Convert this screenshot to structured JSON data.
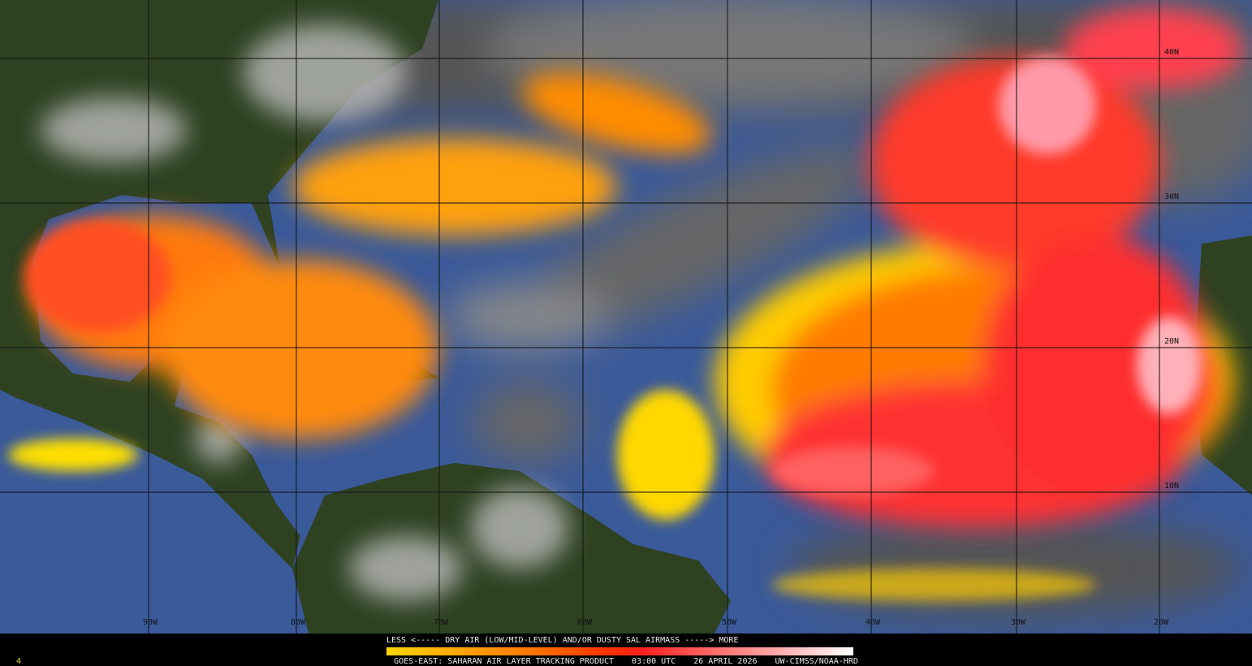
{
  "product": {
    "legend_title": "LESS <----- DRY AIR (LOW/MID-LEVEL) AND/OR DUSTY SAL AIRMASS -----> MORE",
    "footer_product": "GOES-EAST: SAHARAN AIR LAYER TRACKING PRODUCT",
    "footer_time": "03:00 UTC",
    "footer_date": "26 APRIL 2026",
    "footer_credit": "UW-CIMSS/NOAA-HRD",
    "corner_mark": "4"
  },
  "colorbar": {
    "low_label": "LESS",
    "high_label": "MORE",
    "colors": [
      "#f8d400",
      "#ff7a00",
      "#ff2020",
      "#ffb0b0",
      "#ffffff"
    ]
  },
  "grid": {
    "longitudes": [
      "90W",
      "80W",
      "70W",
      "60W",
      "50W",
      "40W",
      "30W",
      "20W"
    ],
    "latitudes": [
      "40N",
      "30N",
      "20N",
      "10N"
    ]
  },
  "colors": {
    "ocean": "#3a5a9a",
    "land": "#2e4222",
    "cloud": "#9a9a9a",
    "sal_low": "#ffd000",
    "sal_mid": "#ff6a00",
    "sal_high": "#ff2a2a",
    "sal_max": "#ffc0c8"
  }
}
